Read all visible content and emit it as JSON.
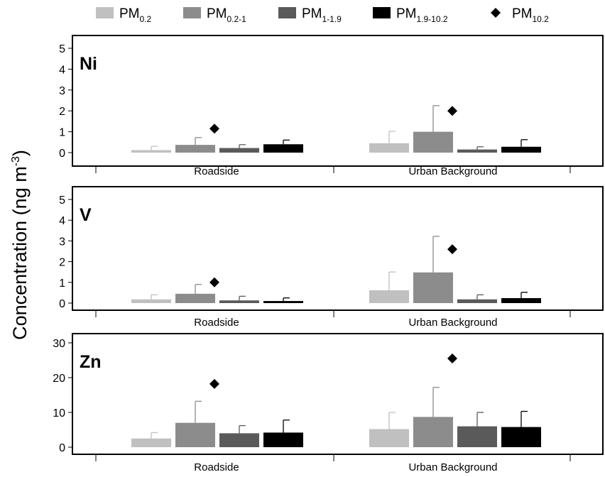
{
  "chart_data": {
    "type": "bar",
    "ylabel": "Concentration (ng m",
    "ylabel_sup": "-3",
    "ylabel_close": ")",
    "legend": {
      "placement": "top",
      "items": [
        {
          "base": "PM",
          "sub": "0.2",
          "marker": "bar",
          "color": "#c0c0c0"
        },
        {
          "base": "PM",
          "sub": "0.2-1",
          "marker": "bar",
          "color": "#8c8c8c"
        },
        {
          "base": "PM",
          "sub": "1-1.9",
          "marker": "bar",
          "color": "#5a5a5a"
        },
        {
          "base": "PM",
          "sub": "1.9-10.2",
          "marker": "bar",
          "color": "#000000"
        },
        {
          "base": "PM",
          "sub": "10.2",
          "marker": "diamond",
          "color": "#000000"
        }
      ]
    },
    "panels": [
      {
        "element": "Ni",
        "categories": [
          "Roadside",
          "Urban Background"
        ],
        "ylim": [
          0,
          5
        ],
        "yticks": [
          0,
          1,
          2,
          3,
          4,
          5
        ],
        "bars": [
          [
            0.12,
            0.37,
            0.22,
            0.4
          ],
          [
            0.45,
            1.0,
            0.15,
            0.28
          ]
        ],
        "errors": [
          [
            0.3,
            0.72,
            0.38,
            0.6
          ],
          [
            1.02,
            2.25,
            0.28,
            0.62
          ]
        ],
        "pm10_2": [
          1.15,
          2.0
        ]
      },
      {
        "element": "V",
        "categories": [
          "Roadside",
          "Urban Background"
        ],
        "ylim": [
          0,
          5
        ],
        "yticks": [
          0,
          1,
          2,
          3,
          4,
          5
        ],
        "bars": [
          [
            0.18,
            0.45,
            0.13,
            0.1
          ],
          [
            0.62,
            1.48,
            0.18,
            0.24
          ]
        ],
        "errors": [
          [
            0.4,
            0.9,
            0.33,
            0.25
          ],
          [
            1.5,
            3.22,
            0.4,
            0.52
          ]
        ],
        "pm10_2": [
          1.0,
          2.6
        ]
      },
      {
        "element": "Zn",
        "categories": [
          "Roadside",
          "Urban Background"
        ],
        "ylim": [
          0,
          30
        ],
        "yticks": [
          0,
          10,
          20,
          30
        ],
        "bars": [
          [
            2.5,
            7.0,
            4.0,
            4.2
          ],
          [
            5.2,
            8.7,
            6.0,
            5.8
          ]
        ],
        "errors": [
          [
            4.2,
            13.2,
            6.2,
            7.8
          ],
          [
            10.0,
            17.2,
            10.0,
            10.3
          ]
        ],
        "pm10_2": [
          18.2,
          25.5
        ]
      }
    ]
  }
}
